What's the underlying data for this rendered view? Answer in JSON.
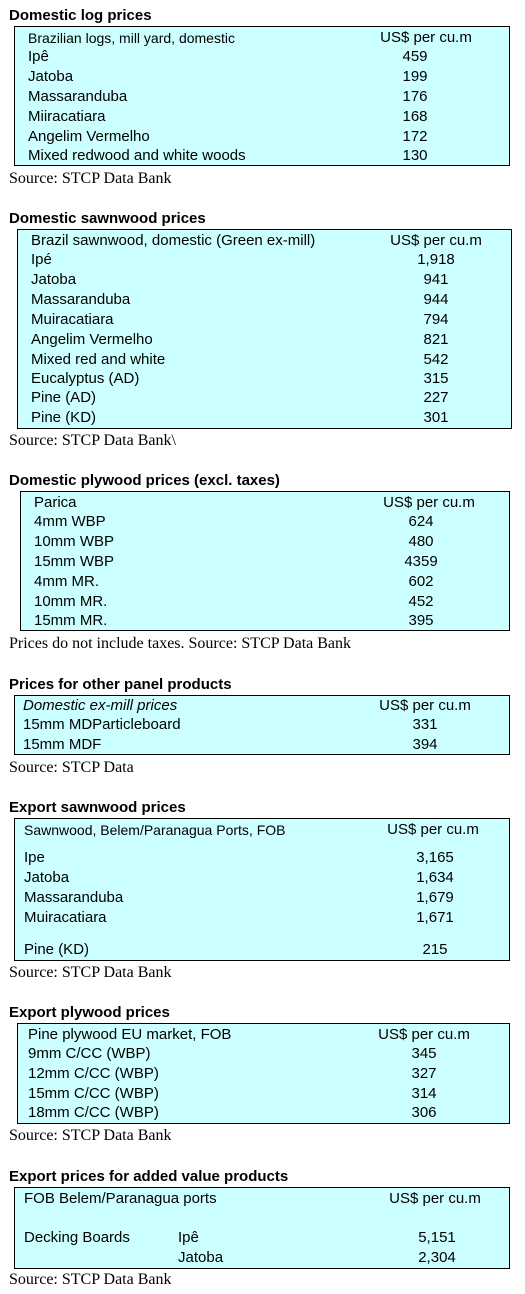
{
  "sections": [
    {
      "title": "Domestic log prices",
      "header": {
        "label": "Brazilian logs, mill yard, domestic",
        "unit": "US$ per cu.m"
      },
      "rows": [
        {
          "label": "Ipê",
          "value": "459"
        },
        {
          "label": "Jatoba",
          "value": "199"
        },
        {
          "label": "Massaranduba",
          "value": "176"
        },
        {
          "label": "Miiracatiara",
          "value": "168"
        },
        {
          "label": "Angelim Vermelho",
          "value": "172"
        },
        {
          "label": "Mixed redwood and white woods",
          "value": "130"
        }
      ],
      "source": "Source: STCP Data Bank"
    },
    {
      "title": "Domestic sawnwood prices",
      "header": {
        "label": "Brazil sawnwood, domestic (Green ex-mill)",
        "unit": "US$ per cu.m"
      },
      "rows": [
        {
          "label": "Ipé",
          "value": "1,918"
        },
        {
          "label": "Jatoba",
          "value": "941"
        },
        {
          "label": "Massaranduba",
          "value": "944"
        },
        {
          "label": "Muiracatiara",
          "value": "794"
        },
        {
          "label": "Angelim Vermelho",
          "value": "821"
        },
        {
          "label": "Mixed red and white",
          "value": "542"
        },
        {
          "label": "Eucalyptus (AD)",
          "value": "315"
        },
        {
          "label": "Pine (AD)",
          "value": "227"
        },
        {
          "label": "Pine (KD)",
          "value": "301"
        }
      ],
      "source": "Source: STCP Data Bank\\"
    },
    {
      "title": "Domestic plywood prices (excl. taxes)",
      "header": {
        "label": "Parica",
        "unit": "US$ per cu.m"
      },
      "rows": [
        {
          "label": "4mm WBP",
          "value": "624"
        },
        {
          "label": "10mm WBP",
          "value": "480"
        },
        {
          "label": "15mm WBP",
          "value": "4359"
        },
        {
          "label": "4mm MR.",
          "value": "602"
        },
        {
          "label": "10mm MR.",
          "value": "452"
        },
        {
          "label": "15mm MR.",
          "value": "395"
        }
      ],
      "source": "Prices do not include taxes. Source: STCP Data Bank"
    },
    {
      "title": "Prices for other panel products",
      "header": {
        "label": "Domestic ex-mill prices",
        "unit": "US$ per cu.m"
      },
      "rows": [
        {
          "label": "15mm MDParticleboard",
          "value": "331"
        },
        {
          "label": "15mm MDF",
          "value": "394"
        }
      ],
      "source": "Source: STCP Data"
    },
    {
      "title": "Export sawnwood prices",
      "header": {
        "label": "Sawnwood, Belem/Paranagua Ports, FOB",
        "unit": "US$ per cu.m"
      },
      "rows": [
        {
          "label": "Ipe",
          "value": "3,165"
        },
        {
          "label": "Jatoba",
          "value": "1,634"
        },
        {
          "label": "Massaranduba",
          "value": "1,679"
        },
        {
          "label": "Muiracatiara",
          "value": "1,671"
        },
        {
          "label": "Pine (KD)",
          "value": "215"
        }
      ],
      "source": "Source: STCP Data Bank"
    },
    {
      "title": "Export plywood prices",
      "header": {
        "label": "Pine plywood EU market, FOB",
        "unit": "US$ per cu.m"
      },
      "rows": [
        {
          "label": "9mm C/CC (WBP)",
          "value": "345"
        },
        {
          "label": "12mm C/CC (WBP)",
          "value": "327"
        },
        {
          "label": "15mm C/CC (WBP)",
          "value": "314"
        },
        {
          "label": "18mm C/CC (WBP)",
          "value": "306"
        }
      ],
      "source": "Source: STCP Data Bank"
    },
    {
      "title": "Export prices for added value products",
      "header": {
        "label": "FOB Belem/Paranagua ports",
        "unit": "US$ per cu.m"
      },
      "rows": [
        {
          "group": "Decking Boards",
          "label": "Ipê",
          "value": "5,151"
        },
        {
          "group": "",
          "label": "Jatoba",
          "value": "2,304"
        }
      ],
      "source": "Source: STCP Data Bank"
    }
  ]
}
